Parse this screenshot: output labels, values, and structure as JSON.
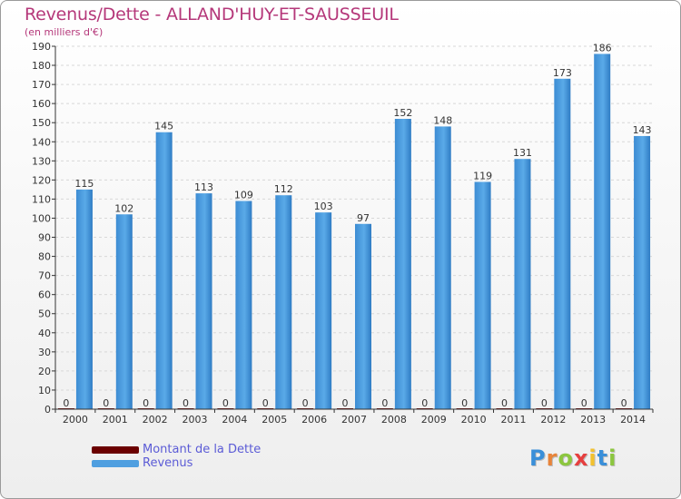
{
  "chart_data": {
    "type": "bar",
    "title": "Revenus/Dette - ALLAND'HUY-ET-SAUSSEUIL",
    "subtitle": "(en milliers d'€)",
    "categories": [
      "2000",
      "2001",
      "2002",
      "2003",
      "2004",
      "2005",
      "2006",
      "2007",
      "2008",
      "2009",
      "2010",
      "2011",
      "2012",
      "2013",
      "2014"
    ],
    "series": [
      {
        "name": "Montant de la Dette",
        "color": "#6b0000",
        "values": [
          0,
          0,
          0,
          0,
          0,
          0,
          0,
          0,
          0,
          0,
          0,
          0,
          0,
          0,
          0
        ]
      },
      {
        "name": "Revenus",
        "color": "#4f9fe0",
        "values": [
          115,
          102,
          145,
          113,
          109,
          112,
          103,
          97,
          152,
          148,
          119,
          131,
          173,
          186,
          143
        ]
      }
    ],
    "ylim": [
      0,
      190
    ],
    "ytick_step": 10,
    "xlabel": "",
    "ylabel": "",
    "grid": true,
    "legend_position": "bottom-left"
  },
  "logo": {
    "letters": [
      "P",
      "r",
      "o",
      "x",
      "i",
      "t",
      "i"
    ],
    "colors": [
      "#3a8fd9",
      "#e8843a",
      "#8cc63f",
      "#e63f3f",
      "#f2c12e",
      "#3a8fd9",
      "#8cc63f"
    ]
  }
}
